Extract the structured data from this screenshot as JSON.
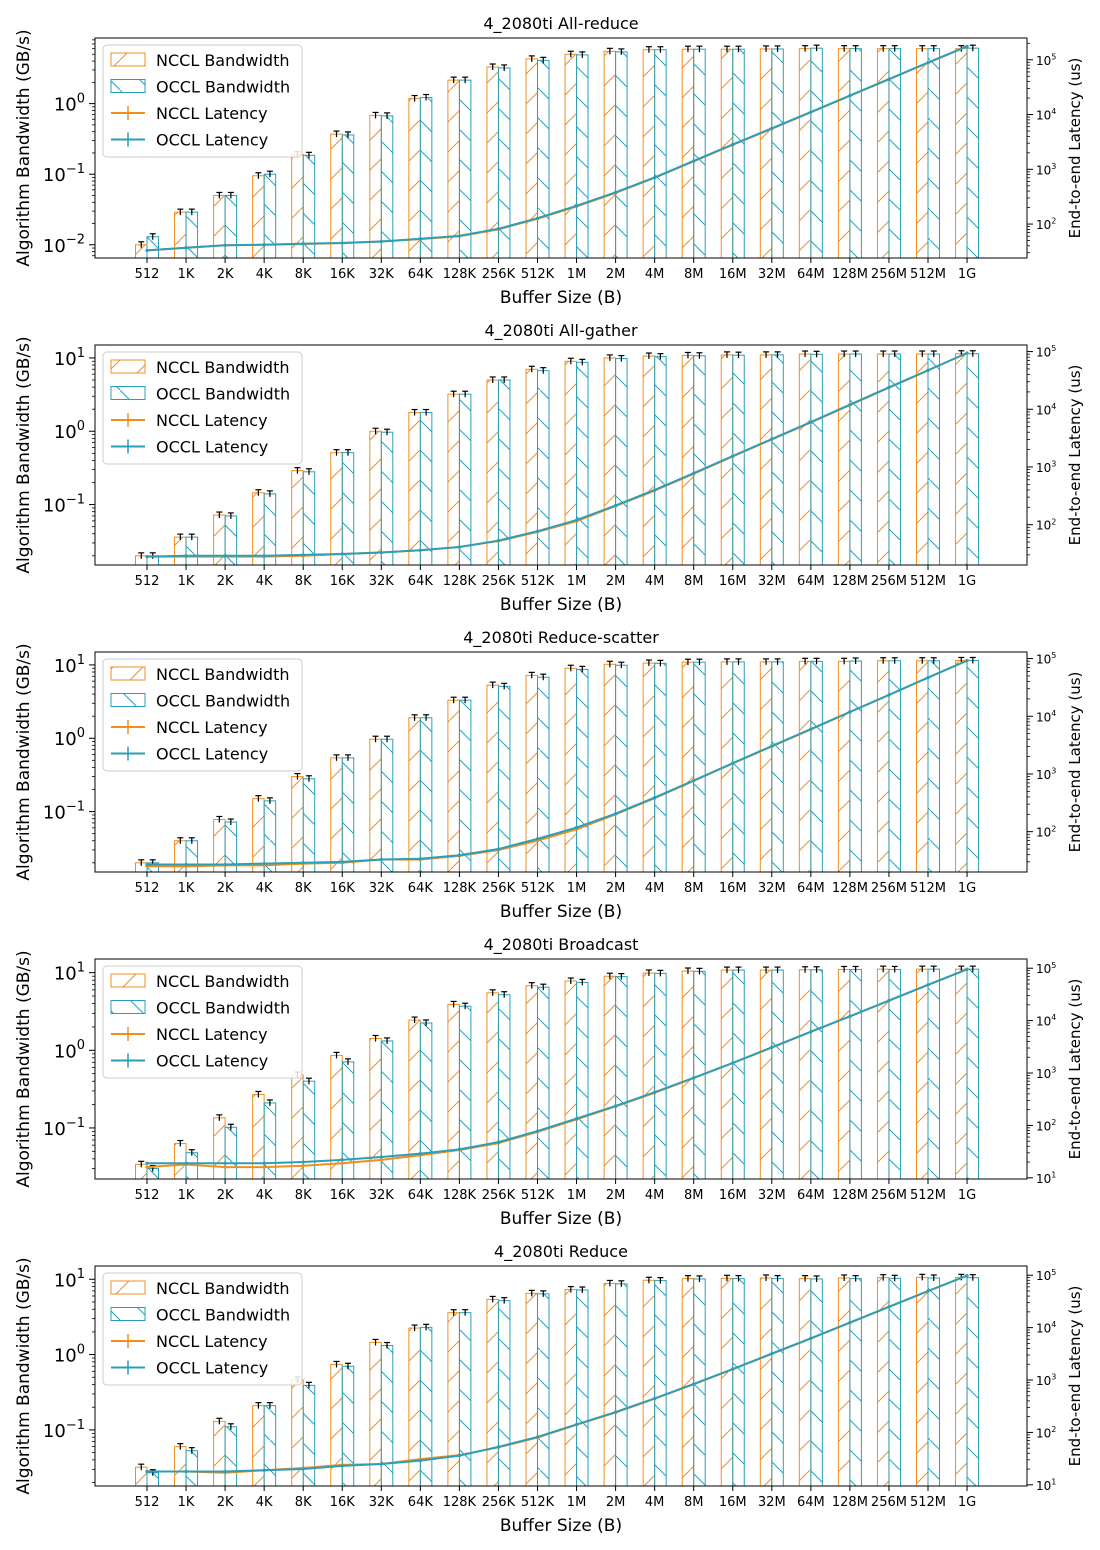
{
  "colors": {
    "nccl": "#f28e1c",
    "occl": "#2b9fba",
    "error": "#000000"
  },
  "legend": [
    "NCCL Bandwidth",
    "OCCL Bandwidth",
    "NCCL Latency",
    "OCCL Latency"
  ],
  "chart_data": [
    {
      "type": "bar",
      "title": "4_2080ti All-reduce",
      "xlabel": "Buffer Size (B)",
      "ylabel": "Algorithm Bandwidth (GB/s)",
      "ylabel_right": "End-to-end Latency (us)",
      "y_scale": "log",
      "y_right_scale": "log",
      "ylim": [
        0.0065,
        8.5
      ],
      "ylim_right": [
        24,
        250000
      ],
      "yticks": [
        {
          "v": 0.01,
          "b": "10",
          "e": "−2"
        },
        {
          "v": 0.1,
          "b": "10",
          "e": "−1"
        },
        {
          "v": 1,
          "b": "10",
          "e": "0"
        }
      ],
      "yticks_right": [
        {
          "v": 100,
          "b": "10",
          "e": "2"
        },
        {
          "v": 1000,
          "b": "10",
          "e": "3"
        },
        {
          "v": 10000,
          "b": "10",
          "e": "4"
        },
        {
          "v": 100000,
          "b": "10",
          "e": "5"
        }
      ],
      "categories": [
        "512",
        "1K",
        "2K",
        "4K",
        "8K",
        "16K",
        "32K",
        "64K",
        "128K",
        "256K",
        "512K",
        "1M",
        "2M",
        "4M",
        "8M",
        "16M",
        "32M",
        "64M",
        "128M",
        "256M",
        "512M",
        "1G"
      ],
      "series": [
        {
          "name": "NCCL Bandwidth",
          "values": [
            0.01,
            0.029,
            0.05,
            0.095,
            0.19,
            0.37,
            0.68,
            1.18,
            2.15,
            3.3,
            4.3,
            5.0,
            5.5,
            5.8,
            5.9,
            5.9,
            5.95,
            6.0,
            6.0,
            6.0,
            6.0,
            6.0
          ]
        },
        {
          "name": "OCCL Bandwidth",
          "values": [
            0.013,
            0.029,
            0.05,
            0.1,
            0.185,
            0.36,
            0.67,
            1.22,
            2.15,
            3.2,
            4.1,
            4.9,
            5.4,
            5.8,
            5.9,
            5.9,
            5.95,
            6.1,
            6.0,
            6.0,
            6.0,
            6.1
          ]
        },
        {
          "name": "NCCL Latency",
          "values": [
            33,
            37,
            41,
            42,
            43,
            45,
            48,
            53,
            60,
            80,
            125,
            210,
            370,
            700,
            1400,
            2800,
            5500,
            11000,
            22000,
            44000,
            88000,
            175000
          ]
        },
        {
          "name": "OCCL Latency",
          "values": [
            33,
            37,
            41,
            42,
            44,
            45,
            48,
            54,
            61,
            82,
            128,
            215,
            380,
            710,
            1420,
            2850,
            5600,
            11100,
            22200,
            44500,
            89000,
            176000
          ]
        }
      ]
    },
    {
      "type": "bar",
      "title": "4_2080ti All-gather",
      "xlabel": "Buffer Size (B)",
      "ylabel": "Algorithm Bandwidth (GB/s)",
      "ylabel_right": "End-to-end Latency (us)",
      "y_scale": "log",
      "y_right_scale": "log",
      "ylim": [
        0.015,
        15
      ],
      "ylim_right": [
        20,
        130000
      ],
      "yticks": [
        {
          "v": 0.1,
          "b": "10",
          "e": "−1"
        },
        {
          "v": 1,
          "b": "10",
          "e": "0"
        },
        {
          "v": 10,
          "b": "10",
          "e": "1"
        }
      ],
      "yticks_right": [
        {
          "v": 100,
          "b": "10",
          "e": "2"
        },
        {
          "v": 1000,
          "b": "10",
          "e": "3"
        },
        {
          "v": 10000,
          "b": "10",
          "e": "4"
        },
        {
          "v": 100000,
          "b": "10",
          "e": "5"
        }
      ],
      "categories": [
        "512",
        "1K",
        "2K",
        "4K",
        "8K",
        "16K",
        "32K",
        "64K",
        "128K",
        "256K",
        "512K",
        "1M",
        "2M",
        "4M",
        "8M",
        "16M",
        "32M",
        "64M",
        "128M",
        "256M",
        "512M",
        "1G"
      ],
      "series": [
        {
          "name": "NCCL Bandwidth",
          "values": [
            0.02,
            0.036,
            0.072,
            0.145,
            0.29,
            0.51,
            1.0,
            1.8,
            3.2,
            5.0,
            7.0,
            9.0,
            10.0,
            10.6,
            10.8,
            11.0,
            11.0,
            11.3,
            11.3,
            11.3,
            11.3,
            11.4
          ]
        },
        {
          "name": "OCCL Bandwidth",
          "values": [
            0.02,
            0.036,
            0.07,
            0.14,
            0.28,
            0.51,
            0.97,
            1.8,
            3.2,
            5.0,
            6.7,
            8.7,
            9.8,
            10.4,
            10.7,
            10.9,
            11.0,
            11.2,
            11.3,
            11.3,
            11.3,
            11.4
          ]
        },
        {
          "name": "NCCL Latency",
          "values": [
            28,
            28,
            28,
            28,
            29,
            31,
            33,
            36,
            41,
            52,
            75,
            115,
            210,
            390,
            760,
            1520,
            3000,
            5900,
            11800,
            23600,
            47000,
            94000
          ]
        },
        {
          "name": "OCCL Latency",
          "values": [
            28,
            29,
            29,
            29,
            30,
            31,
            33,
            36,
            41,
            53,
            77,
            120,
            215,
            400,
            780,
            1550,
            3050,
            6000,
            12000,
            24000,
            47500,
            94500
          ]
        }
      ]
    },
    {
      "type": "bar",
      "title": "4_2080ti Reduce-scatter",
      "xlabel": "Buffer Size (B)",
      "ylabel": "Algorithm Bandwidth (GB/s)",
      "ylabel_right": "End-to-end Latency (us)",
      "y_scale": "log",
      "y_right_scale": "log",
      "ylim": [
        0.015,
        15
      ],
      "ylim_right": [
        20,
        130000
      ],
      "yticks": [
        {
          "v": 0.1,
          "b": "10",
          "e": "−1"
        },
        {
          "v": 1,
          "b": "10",
          "e": "0"
        },
        {
          "v": 10,
          "b": "10",
          "e": "1"
        }
      ],
      "yticks_right": [
        {
          "v": 100,
          "b": "10",
          "e": "2"
        },
        {
          "v": 1000,
          "b": "10",
          "e": "3"
        },
        {
          "v": 10000,
          "b": "10",
          "e": "4"
        },
        {
          "v": 100000,
          "b": "10",
          "e": "5"
        }
      ],
      "categories": [
        "512",
        "1K",
        "2K",
        "4K",
        "8K",
        "16K",
        "32K",
        "64K",
        "128K",
        "256K",
        "512K",
        "1M",
        "2M",
        "4M",
        "8M",
        "16M",
        "32M",
        "64M",
        "128M",
        "256M",
        "512M",
        "1G"
      ],
      "series": [
        {
          "name": "NCCL Bandwidth",
          "values": [
            0.02,
            0.04,
            0.078,
            0.15,
            0.3,
            0.54,
            0.97,
            1.9,
            3.3,
            5.3,
            7.2,
            9.0,
            10.2,
            10.6,
            10.9,
            11.0,
            11.0,
            11.2,
            11.2,
            11.4,
            11.4,
            11.5
          ]
        },
        {
          "name": "OCCL Bandwidth",
          "values": [
            0.02,
            0.04,
            0.072,
            0.14,
            0.28,
            0.54,
            0.97,
            1.9,
            3.3,
            5.1,
            6.8,
            8.7,
            9.9,
            10.5,
            10.9,
            11.0,
            11.0,
            11.2,
            11.3,
            11.4,
            11.4,
            11.5
          ]
        },
        {
          "name": "NCCL Latency",
          "values": [
            25,
            25,
            26,
            26,
            28,
            29,
            33,
            33,
            38,
            48,
            70,
            110,
            200,
            380,
            760,
            1520,
            3000,
            5900,
            11800,
            23300,
            46500,
            92000
          ]
        },
        {
          "name": "OCCL Latency",
          "values": [
            27,
            27,
            27,
            28,
            29,
            30,
            33,
            34,
            39,
            50,
            75,
            118,
            205,
            390,
            770,
            1540,
            3050,
            6000,
            11900,
            23500,
            46800,
            92500
          ]
        }
      ]
    },
    {
      "type": "bar",
      "title": "4_2080ti Broadcast",
      "xlabel": "Buffer Size (B)",
      "ylabel": "Algorithm Bandwidth (GB/s)",
      "ylabel_right": "End-to-end Latency (us)",
      "y_scale": "log",
      "y_right_scale": "log",
      "ylim": [
        0.022,
        15
      ],
      "ylim_right": [
        9.5,
        150000
      ],
      "yticks": [
        {
          "v": 0.1,
          "b": "10",
          "e": "−1"
        },
        {
          "v": 1,
          "b": "10",
          "e": "0"
        },
        {
          "v": 10,
          "b": "10",
          "e": "1"
        }
      ],
      "yticks_right": [
        {
          "v": 10,
          "b": "10",
          "e": "1"
        },
        {
          "v": 100,
          "b": "10",
          "e": "2"
        },
        {
          "v": 1000,
          "b": "10",
          "e": "3"
        },
        {
          "v": 10000,
          "b": "10",
          "e": "4"
        },
        {
          "v": 100000,
          "b": "10",
          "e": "5"
        }
      ],
      "categories": [
        "512",
        "1K",
        "2K",
        "4K",
        "8K",
        "16K",
        "32K",
        "64K",
        "128K",
        "256K",
        "512K",
        "1M",
        "2M",
        "4M",
        "8M",
        "16M",
        "32M",
        "64M",
        "128M",
        "256M",
        "512M",
        "1G"
      ],
      "series": [
        {
          "name": "NCCL Bandwidth",
          "values": [
            0.034,
            0.063,
            0.135,
            0.27,
            0.48,
            0.86,
            1.42,
            2.45,
            3.9,
            5.5,
            6.8,
            7.8,
            9.0,
            9.9,
            10.5,
            10.8,
            10.8,
            10.9,
            11.0,
            11.1,
            11.1,
            11.1
          ]
        },
        {
          "name": "OCCL Bandwidth",
          "values": [
            0.03,
            0.048,
            0.102,
            0.21,
            0.4,
            0.71,
            1.32,
            2.25,
            3.7,
            5.2,
            6.5,
            7.5,
            8.9,
            9.8,
            10.4,
            10.8,
            10.8,
            10.9,
            11.0,
            11.0,
            11.1,
            11.1
          ]
        },
        {
          "name": "NCCL Latency",
          "values": [
            16,
            18,
            16,
            16,
            17,
            19,
            22,
            27,
            34,
            46,
            75,
            130,
            230,
            420,
            800,
            1550,
            3050,
            6100,
            12000,
            24000,
            48000,
            95000
          ]
        },
        {
          "name": "OCCL Latency",
          "values": [
            19,
            19,
            19,
            19,
            20,
            22,
            25,
            29,
            35,
            48,
            78,
            135,
            235,
            430,
            810,
            1560,
            3100,
            6150,
            12100,
            24200,
            48300,
            95500
          ]
        }
      ]
    },
    {
      "type": "bar",
      "title": "4_2080ti Reduce",
      "xlabel": "Buffer Size (B)",
      "ylabel": "Algorithm Bandwidth (GB/s)",
      "ylabel_right": "End-to-end Latency (us)",
      "y_scale": "log",
      "y_right_scale": "log",
      "ylim": [
        0.018,
        15
      ],
      "ylim_right": [
        9.5,
        150000
      ],
      "yticks": [
        {
          "v": 0.1,
          "b": "10",
          "e": "−1"
        },
        {
          "v": 1,
          "b": "10",
          "e": "0"
        },
        {
          "v": 10,
          "b": "10",
          "e": "1"
        }
      ],
      "yticks_right": [
        {
          "v": 10,
          "b": "10",
          "e": "1"
        },
        {
          "v": 100,
          "b": "10",
          "e": "2"
        },
        {
          "v": 1000,
          "b": "10",
          "e": "3"
        },
        {
          "v": 10000,
          "b": "10",
          "e": "4"
        },
        {
          "v": 100000,
          "b": "10",
          "e": "5"
        }
      ],
      "categories": [
        "512",
        "1K",
        "2K",
        "4K",
        "8K",
        "16K",
        "32K",
        "64K",
        "128K",
        "256K",
        "512K",
        "1M",
        "2M",
        "4M",
        "8M",
        "16M",
        "32M",
        "64M",
        "128M",
        "256M",
        "512M",
        "1G"
      ],
      "series": [
        {
          "name": "NCCL Bandwidth",
          "values": [
            0.032,
            0.06,
            0.13,
            0.21,
            0.46,
            0.74,
            1.45,
            2.25,
            3.6,
            5.4,
            6.5,
            7.3,
            8.8,
            9.7,
            10.2,
            10.3,
            10.4,
            10.2,
            10.4,
            10.5,
            10.6,
            10.6
          ]
        },
        {
          "name": "OCCL Bandwidth",
          "values": [
            0.027,
            0.053,
            0.11,
            0.21,
            0.39,
            0.7,
            1.32,
            2.3,
            3.6,
            5.2,
            6.4,
            7.2,
            8.7,
            9.6,
            10.1,
            10.2,
            10.2,
            10.1,
            10.2,
            10.3,
            10.4,
            10.5
          ]
        },
        {
          "name": "NCCL Latency",
          "values": [
            18,
            18,
            17,
            19,
            21,
            24,
            25,
            31,
            37,
            52,
            80,
            140,
            240,
            440,
            830,
            1600,
            3150,
            6200,
            12400,
            24800,
            49500,
            98000
          ]
        },
        {
          "name": "OCCL Latency",
          "values": [
            18,
            18,
            18,
            19,
            20,
            23,
            25,
            29,
            36,
            53,
            82,
            142,
            245,
            445,
            840,
            1620,
            3200,
            6250,
            12500,
            25000,
            50000,
            98500
          ]
        }
      ]
    }
  ]
}
